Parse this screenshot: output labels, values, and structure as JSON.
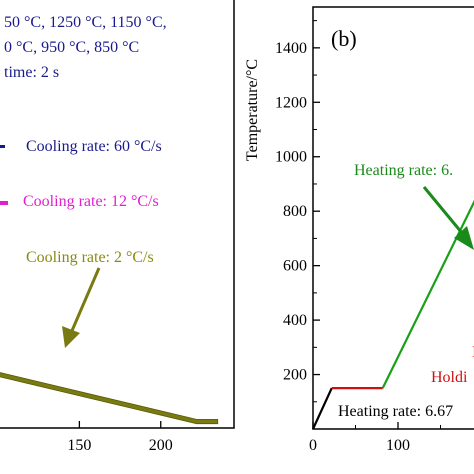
{
  "chart_data": [
    {
      "panel": "a",
      "type": "line",
      "xlim": [
        100,
        245
      ],
      "x_ticks": [
        150,
        200
      ],
      "header_lines": [
        "50 °C, 1250 °C, 1150 °C,",
        "0 °C, 950 °C, 850 °C",
        "time: 2 s"
      ],
      "annotations": [
        {
          "text": "Cooling rate: 60 °C/s",
          "color": "#1a1a8c"
        },
        {
          "text": "Cooling rate: 12 °C/s",
          "color": "#e020d0"
        },
        {
          "text": "Cooling rate: 2 °C/s",
          "color": "#8a8a10"
        }
      ],
      "band": {
        "color": "#7a7a12",
        "x": [
          100,
          222,
          235
        ],
        "y_top_frac": [
          0.87,
          0.98,
          0.98
        ],
        "y_bot_frac": [
          0.88,
          0.99,
          0.99
        ]
      }
    },
    {
      "panel": "b",
      "type": "line",
      "label": "(b)",
      "ylabel": "Temperature/°C",
      "xlim": [
        0,
        200
      ],
      "ylim": [
        0,
        1550
      ],
      "x_ticks": [
        0,
        100
      ],
      "y_ticks": [
        200,
        400,
        600,
        800,
        1000,
        1200,
        1400
      ],
      "annotations": [
        {
          "text": "Heating rate: 6.",
          "color": "#1a8a1a"
        },
        {
          "text": "Heating rate: 6.67",
          "color": "#000000"
        },
        {
          "text": "I",
          "color": "#d01010"
        },
        {
          "text": "Holdi",
          "color": "#d01010"
        }
      ],
      "series": [
        {
          "color": "#000000",
          "x": [
            0,
            22
          ],
          "y": [
            0,
            150
          ]
        },
        {
          "color": "#d01010",
          "x": [
            22,
            82
          ],
          "y": [
            150,
            150
          ]
        },
        {
          "color": "#18a018",
          "x": [
            82,
            200
          ],
          "y": [
            150,
            900
          ]
        }
      ]
    }
  ]
}
